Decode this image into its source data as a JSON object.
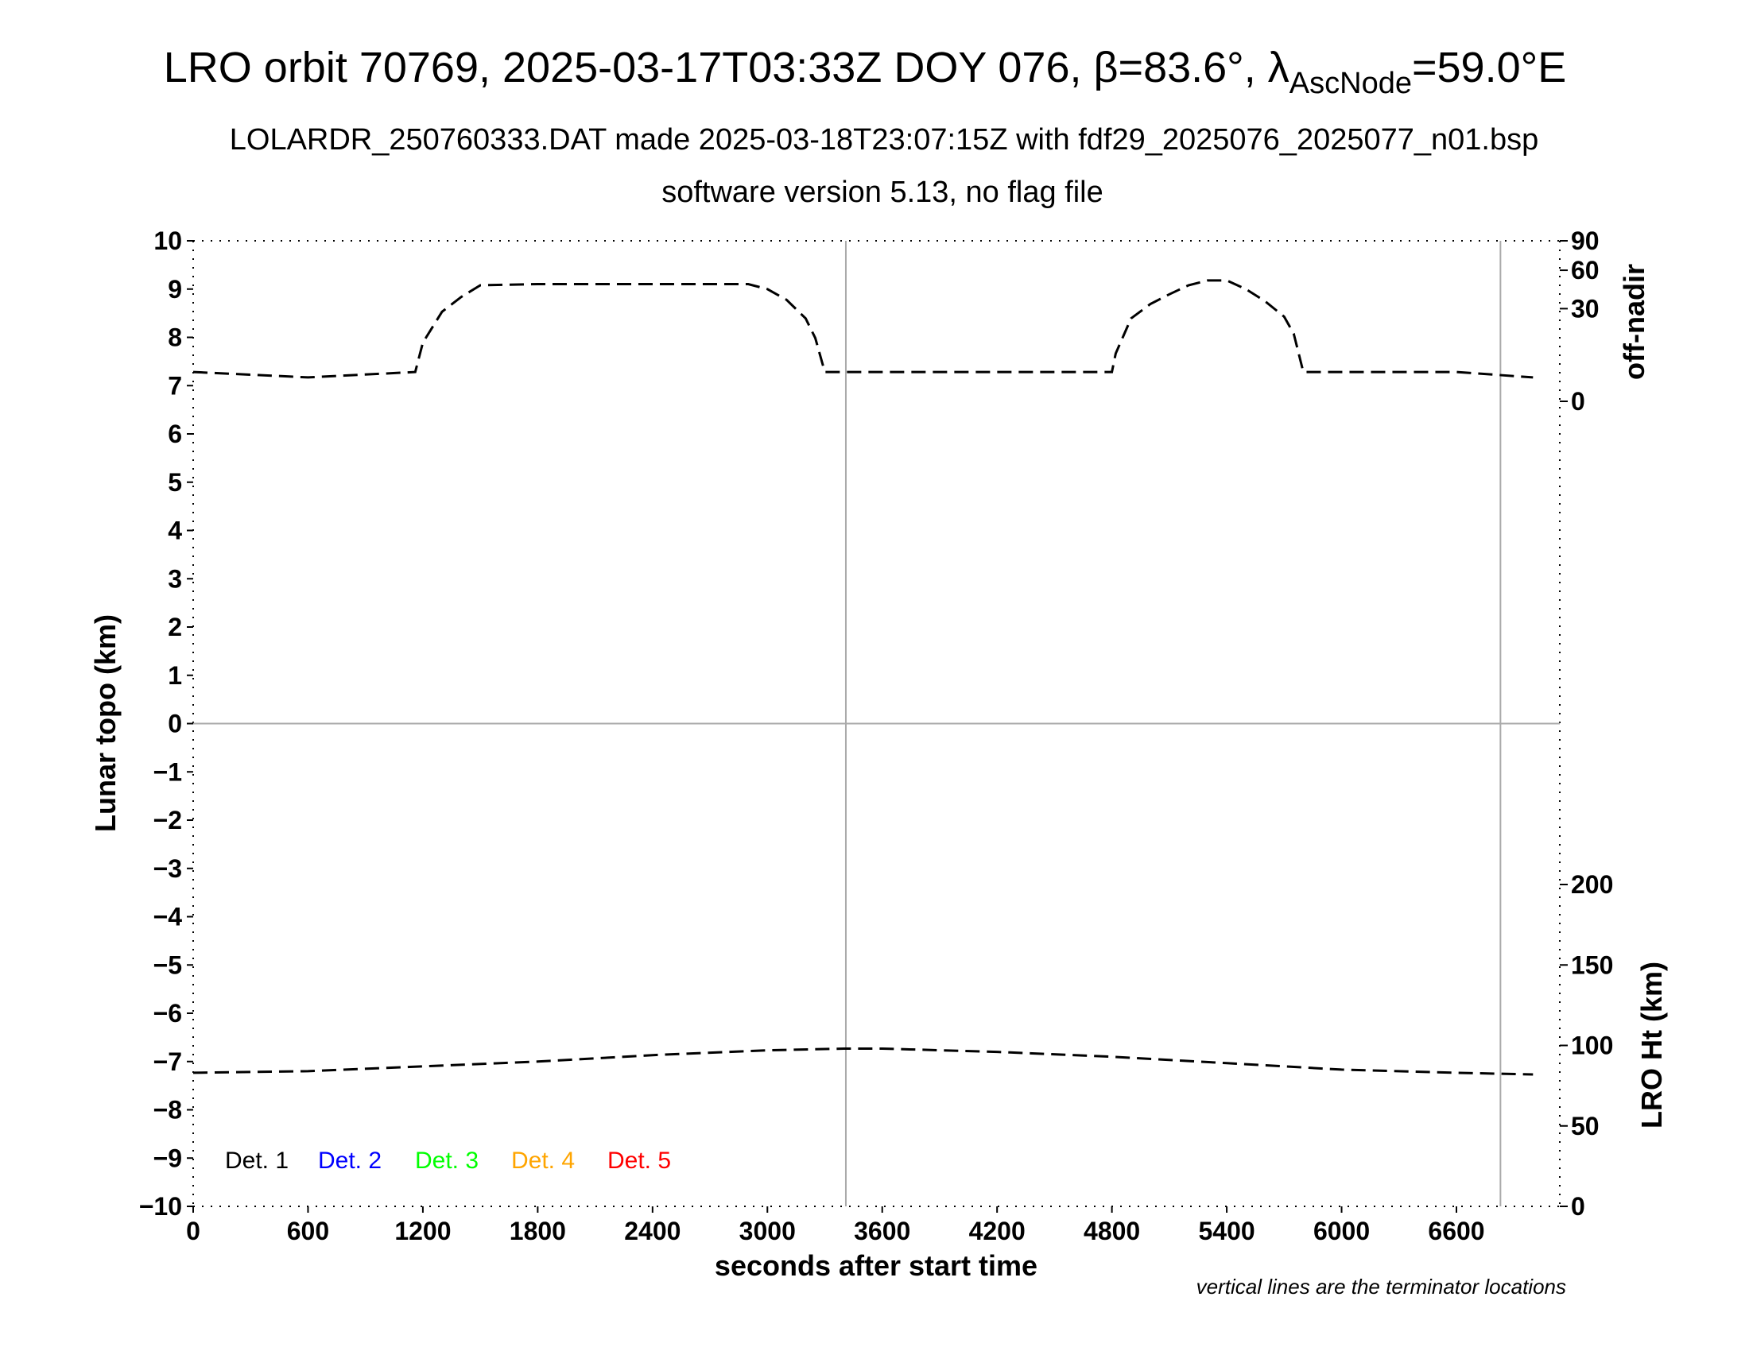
{
  "title": {
    "main_prefix": "LRO orbit 70769, 2025-03-17T03:33Z DOY 076, β=83.6°, λ",
    "main_subscript": "AscNode",
    "main_suffix": "=59.0°E",
    "line2": "LOLARDR_250760333.DAT made 2025-03-18T23:07:15Z with fdf29_2025076_2025077_n01.bsp",
    "line3": "software version 5.13, no flag file"
  },
  "note": "vertical lines are the terminator locations",
  "legend": [
    {
      "label": "Det. 1",
      "color": "#000000"
    },
    {
      "label": "Det. 2",
      "color": "#0000ff"
    },
    {
      "label": "Det. 3",
      "color": "#00ff00"
    },
    {
      "label": "Det. 4",
      "color": "#ffa500"
    },
    {
      "label": "Det. 5",
      "color": "#ff0000"
    }
  ],
  "chart_data": {
    "type": "line",
    "xlabel": "seconds after start time",
    "ylabel": "Lunar topo (km)",
    "xlim": [
      0,
      7140
    ],
    "ylim": [
      -10,
      10
    ],
    "x_ticks": [
      0,
      600,
      1200,
      1800,
      2400,
      3000,
      3600,
      4200,
      4800,
      5400,
      6000,
      6600
    ],
    "y_ticks": [
      -10,
      -9,
      -8,
      -7,
      -6,
      -5,
      -4,
      -3,
      -2,
      -1,
      0,
      1,
      2,
      3,
      4,
      5,
      6,
      7,
      8,
      9,
      10
    ],
    "right_axes": [
      {
        "label": "off-nadir",
        "ticks": [
          0,
          30,
          60,
          90
        ]
      },
      {
        "label": "LRO Ht (km)",
        "ticks": [
          0,
          50,
          100,
          150,
          200
        ]
      }
    ],
    "terminator_lines_x": [
      3410,
      6830
    ],
    "zero_line_y": 0,
    "series": [
      {
        "axis": "off-nadir",
        "x": [
          0,
          600,
          1160,
          1200,
          1300,
          1400,
          1500,
          1800,
          2400,
          2900,
          3000,
          3100,
          3200,
          3250,
          3300,
          4800,
          4820,
          4900,
          5000,
          5100,
          5200,
          5300,
          5400,
          5500,
          5600,
          5700,
          5750,
          5800,
          6600,
          7000
        ],
        "y": [
          3,
          2,
          3,
          12,
          28,
          38,
          47,
          48,
          48,
          48,
          44,
          36,
          24,
          14,
          3,
          3,
          8,
          24,
          33,
          40,
          47,
          51,
          51,
          44,
          35,
          25,
          16,
          3,
          3,
          2
        ]
      },
      {
        "axis": "LRO Ht (km)",
        "x": [
          0,
          600,
          1200,
          1800,
          2400,
          3000,
          3400,
          3600,
          4200,
          4800,
          5400,
          6000,
          6600,
          7000
        ],
        "y": [
          83,
          84,
          87,
          90,
          94,
          97,
          98,
          98,
          96,
          93,
          89,
          85,
          83,
          82
        ]
      }
    ]
  }
}
